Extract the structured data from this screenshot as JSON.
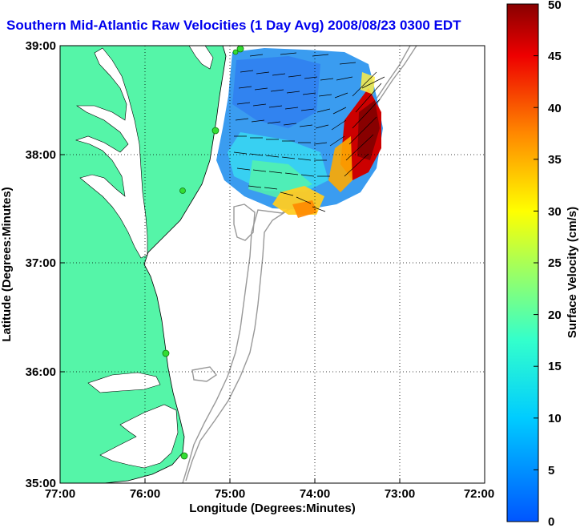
{
  "title": "Southern Mid-Atlantic Raw Velocities (1 Day Avg) 2008/08/23 0300 EDT",
  "axes": {
    "xlabel": "Longitude (Degrees:Minutes)",
    "ylabel": "Latitude (Degrees:Minutes)",
    "x_ticks": [
      "77:00",
      "76:00",
      "75:00",
      "74:00",
      "73:00",
      "72:00"
    ],
    "y_ticks": [
      "39:00",
      "38:00",
      "37:00",
      "36:00",
      "35:00"
    ]
  },
  "colorbar": {
    "label": "Surface Velocity (cm/s)",
    "ticks": [
      "0",
      "5",
      "10",
      "15",
      "20",
      "25",
      "30",
      "35",
      "40",
      "45",
      "50"
    ],
    "min": 0,
    "max": 50
  },
  "colors": {
    "land": "#55f5a8",
    "water": "#ffffff",
    "title": "#0000ee",
    "station": "#33dd33"
  }
}
